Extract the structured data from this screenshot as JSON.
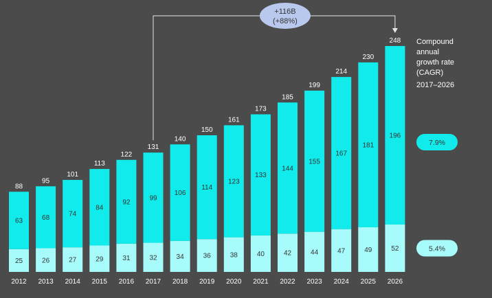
{
  "chart_data": {
    "type": "bar",
    "stacked": true,
    "categories": [
      "2012",
      "2013",
      "2014",
      "2015",
      "2016",
      "2017",
      "2018",
      "2019",
      "2020",
      "2021",
      "2022",
      "2023",
      "2024",
      "2025",
      "2026"
    ],
    "series": [
      {
        "values": [
          25,
          26,
          27,
          29,
          31,
          32,
          34,
          36,
          38,
          40,
          42,
          44,
          47,
          49,
          52
        ],
        "color": "#a8fbfb"
      },
      {
        "values": [
          63,
          68,
          74,
          84,
          92,
          99,
          106,
          114,
          123,
          133,
          144,
          155,
          167,
          181,
          196
        ],
        "color": "#11ebeb"
      }
    ],
    "totals": [
      88,
      95,
      101,
      113,
      122,
      131,
      140,
      150,
      161,
      173,
      185,
      199,
      214,
      230,
      248
    ],
    "ylim": [
      0,
      248
    ],
    "legend_title": "Compound annual growth rate (CAGR) 2017–2026",
    "cagr": [
      {
        "label": "7.9%",
        "color": "#11ebeb"
      },
      {
        "label": "5.4%",
        "color": "#a8fbfb"
      }
    ],
    "callout": {
      "line1": "+116B",
      "line2": "(+88%)",
      "from": "2017",
      "to": "2026",
      "color": "#b9c9ee"
    }
  }
}
